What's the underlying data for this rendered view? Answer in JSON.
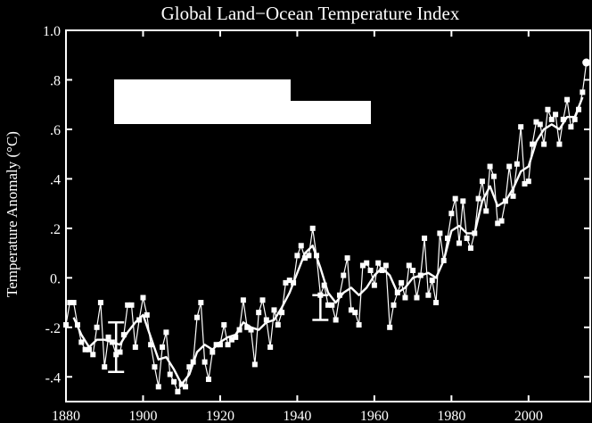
{
  "chart_data": {
    "type": "line",
    "title": "Global Land−Ocean Temperature Index",
    "xlabel": "",
    "ylabel": "Temperature Anomaly (°C)",
    "xlim": [
      1880,
      2016
    ],
    "ylim": [
      -0.5,
      1.0
    ],
    "x_ticks": [
      1880,
      1900,
      1920,
      1940,
      1960,
      1980,
      2000
    ],
    "x_tick_labels": [
      "1880",
      "1900",
      "1920",
      "1940",
      "1960",
      "1980",
      "2000"
    ],
    "y_ticks": [
      -0.4,
      -0.2,
      0.0,
      0.2,
      0.4,
      0.6,
      0.8,
      1.0
    ],
    "y_tick_labels": [
      "-.4",
      "-.2",
      "0.",
      ".2",
      ".4",
      ".6",
      ".8",
      "1.0"
    ],
    "grid": false,
    "colors": {
      "background": "#000000",
      "foreground": "#ffffff"
    },
    "series": [
      {
        "marker": "square",
        "x": [
          1880,
          1881,
          1882,
          1883,
          1884,
          1885,
          1886,
          1887,
          1888,
          1889,
          1890,
          1891,
          1892,
          1893,
          1894,
          1895,
          1896,
          1897,
          1898,
          1899,
          1900,
          1901,
          1902,
          1903,
          1904,
          1905,
          1906,
          1907,
          1908,
          1909,
          1910,
          1911,
          1912,
          1913,
          1914,
          1915,
          1916,
          1917,
          1918,
          1919,
          1920,
          1921,
          1922,
          1923,
          1924,
          1925,
          1926,
          1927,
          1928,
          1929,
          1930,
          1931,
          1932,
          1933,
          1934,
          1935,
          1936,
          1937,
          1938,
          1939,
          1940,
          1941,
          1942,
          1943,
          1944,
          1945,
          1946,
          1947,
          1948,
          1949,
          1950,
          1951,
          1952,
          1953,
          1954,
          1955,
          1956,
          1957,
          1958,
          1959,
          1960,
          1961,
          1962,
          1963,
          1964,
          1965,
          1966,
          1967,
          1968,
          1969,
          1970,
          1971,
          1972,
          1973,
          1974,
          1975,
          1976,
          1977,
          1978,
          1979,
          1980,
          1981,
          1982,
          1983,
          1984,
          1985,
          1986,
          1987,
          1988,
          1989,
          1990,
          1991,
          1992,
          1993,
          1994,
          1995,
          1996,
          1997,
          1998,
          1999,
          2000,
          2001,
          2002,
          2003,
          2004,
          2005,
          2006,
          2007,
          2008,
          2009,
          2010,
          2011,
          2012,
          2013,
          2014,
          2015
        ],
        "values": [
          -0.19,
          -0.1,
          -0.1,
          -0.19,
          -0.26,
          -0.29,
          -0.29,
          -0.31,
          -0.2,
          -0.1,
          -0.36,
          -0.24,
          -0.26,
          -0.31,
          -0.3,
          -0.23,
          -0.11,
          -0.11,
          -0.28,
          -0.17,
          -0.08,
          -0.15,
          -0.27,
          -0.36,
          -0.44,
          -0.28,
          -0.22,
          -0.39,
          -0.42,
          -0.46,
          -0.43,
          -0.44,
          -0.36,
          -0.34,
          -0.16,
          -0.1,
          -0.34,
          -0.41,
          -0.3,
          -0.27,
          -0.27,
          -0.19,
          -0.27,
          -0.25,
          -0.24,
          -0.21,
          -0.09,
          -0.2,
          -0.21,
          -0.35,
          -0.14,
          -0.09,
          -0.17,
          -0.28,
          -0.13,
          -0.19,
          -0.14,
          -0.02,
          -0.01,
          -0.02,
          0.09,
          0.13,
          0.08,
          0.09,
          0.2,
          0.09,
          -0.07,
          -0.03,
          -0.11,
          -0.11,
          -0.17,
          -0.07,
          0.01,
          0.08,
          -0.13,
          -0.14,
          -0.19,
          0.05,
          0.06,
          0.03,
          -0.03,
          0.06,
          0.03,
          0.05,
          -0.2,
          -0.11,
          -0.06,
          -0.02,
          -0.08,
          0.05,
          0.03,
          -0.08,
          0.01,
          0.16,
          -0.07,
          -0.01,
          -0.1,
          0.18,
          0.07,
          0.16,
          0.26,
          0.32,
          0.14,
          0.31,
          0.16,
          0.12,
          0.18,
          0.32,
          0.39,
          0.27,
          0.45,
          0.41,
          0.22,
          0.23,
          0.31,
          0.45,
          0.33,
          0.46,
          0.61,
          0.38,
          0.39,
          0.54,
          0.63,
          0.62,
          0.54,
          0.68,
          0.64,
          0.66,
          0.54,
          0.64,
          0.72,
          0.61,
          0.64,
          0.68,
          0.75,
          0.87
        ]
      },
      {
        "marker": "none",
        "x": [
          1882,
          1884,
          1886,
          1888,
          1890,
          1892,
          1894,
          1896,
          1898,
          1900,
          1902,
          1904,
          1906,
          1908,
          1910,
          1912,
          1914,
          1916,
          1918,
          1920,
          1922,
          1924,
          1926,
          1928,
          1930,
          1932,
          1934,
          1936,
          1938,
          1940,
          1942,
          1944,
          1946,
          1948,
          1950,
          1952,
          1954,
          1956,
          1958,
          1960,
          1962,
          1964,
          1966,
          1968,
          1970,
          1972,
          1974,
          1976,
          1978,
          1980,
          1982,
          1984,
          1986,
          1988,
          1990,
          1992,
          1994,
          1996,
          1998,
          2000,
          2002,
          2004,
          2006,
          2008,
          2010,
          2012,
          2014
        ],
        "values": [
          -0.16,
          -0.23,
          -0.28,
          -0.25,
          -0.25,
          -0.26,
          -0.27,
          -0.22,
          -0.18,
          -0.15,
          -0.24,
          -0.33,
          -0.32,
          -0.37,
          -0.43,
          -0.39,
          -0.3,
          -0.27,
          -0.29,
          -0.26,
          -0.24,
          -0.23,
          -0.18,
          -0.2,
          -0.21,
          -0.18,
          -0.17,
          -0.12,
          -0.06,
          0.02,
          0.1,
          0.13,
          0.04,
          -0.06,
          -0.1,
          -0.06,
          -0.04,
          -0.07,
          -0.04,
          0.01,
          0.04,
          0.01,
          -0.06,
          -0.04,
          0.0,
          0.01,
          0.02,
          0.0,
          0.07,
          0.19,
          0.21,
          0.18,
          0.18,
          0.31,
          0.37,
          0.29,
          0.31,
          0.36,
          0.43,
          0.45,
          0.55,
          0.6,
          0.62,
          0.6,
          0.65,
          0.65,
          0.73
        ]
      }
    ],
    "error_bars": [
      {
        "x": 1893,
        "low": -0.38,
        "high": -0.18
      },
      {
        "x": 1946,
        "low": -0.17,
        "high": -0.07
      }
    ]
  }
}
